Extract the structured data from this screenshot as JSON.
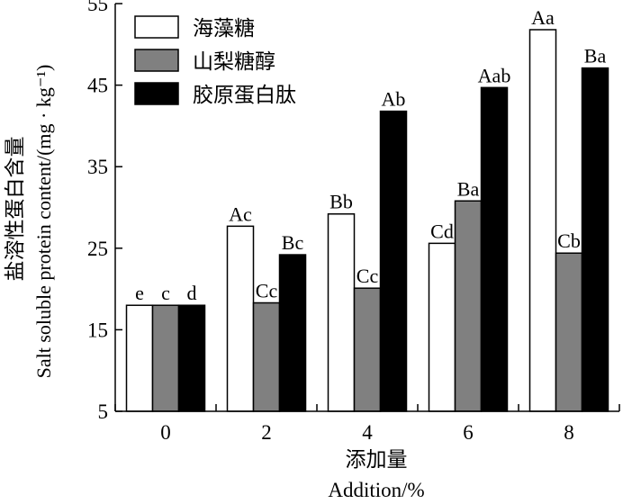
{
  "chart_data": {
    "type": "bar",
    "categories": [
      "0",
      "2",
      "4",
      "6",
      "8"
    ],
    "series": [
      {
        "name": "海藻糖",
        "values": [
          18.0,
          27.7,
          29.2,
          25.6,
          51.8
        ],
        "labels": [
          "e",
          "Ac",
          "Bb",
          "Cd",
          "Aa"
        ],
        "fill": "#ffffff"
      },
      {
        "name": "山梨糖醇",
        "values": [
          18.0,
          18.3,
          20.1,
          30.8,
          24.4
        ],
        "labels": [
          "c",
          "Cc",
          "Cc",
          "Ba",
          "Cb"
        ],
        "fill": "#808080"
      },
      {
        "name": "胶原蛋白肽",
        "values": [
          18.0,
          24.2,
          41.8,
          44.7,
          47.1
        ],
        "labels": [
          "d",
          "Bc",
          "Ab",
          "Aab",
          "Ba"
        ],
        "fill": "#000000"
      }
    ],
    "ylim": [
      5,
      55
    ],
    "yticks": [
      5,
      15,
      25,
      35,
      45,
      55
    ],
    "ylabel_cn": "盐溶性蛋白含量",
    "ylabel_en": "Salt soluble protein content/(mg · kg⁻¹)",
    "xlabel_cn": "添加量",
    "xlabel_en": "Addition/%",
    "legend_position": "top-left",
    "grid": false
  }
}
